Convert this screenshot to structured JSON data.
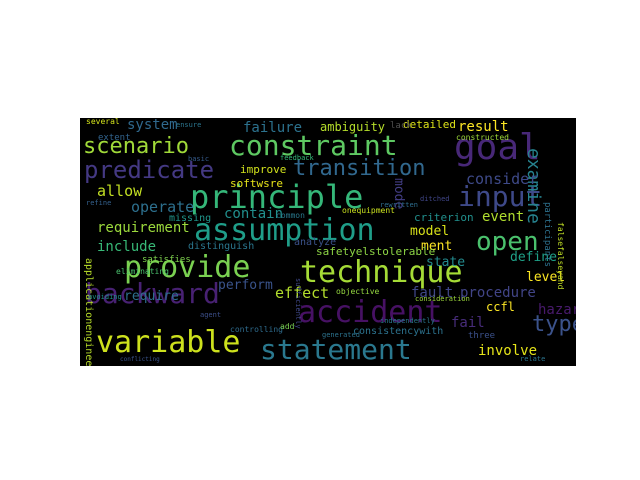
{
  "words": [
    {
      "text": "constraint",
      "color": "#5ec962"
    },
    {
      "text": "goal",
      "color": "#482878"
    },
    {
      "text": "scenario",
      "color": "#a0da39"
    },
    {
      "text": "predicate",
      "color": "#443983"
    },
    {
      "text": "transition",
      "color": "#31688e"
    },
    {
      "text": "principle",
      "color": "#35b779"
    },
    {
      "text": "input",
      "color": "#3e4989"
    },
    {
      "text": "assumption",
      "color": "#1f9e89"
    },
    {
      "text": "open",
      "color": "#4ac16d"
    },
    {
      "text": "provide",
      "color": "#7ad151"
    },
    {
      "text": "technique",
      "color": "#a5db36"
    },
    {
      "text": "backward",
      "color": "#482173"
    },
    {
      "text": "accident",
      "color": "#471164"
    },
    {
      "text": "variable",
      "color": "#cde11d"
    },
    {
      "text": "statement",
      "color": "#2a788e"
    },
    {
      "text": "type",
      "color": "#3b528b"
    },
    {
      "text": "examine",
      "color": "#26828e"
    },
    {
      "text": "failure",
      "color": "#2c728e"
    },
    {
      "text": "system",
      "color": "#30698e"
    },
    {
      "text": "ambiguity",
      "color": "#b5de2b"
    },
    {
      "text": "detailed",
      "color": "#dde318"
    },
    {
      "text": "result",
      "color": "#fde725"
    },
    {
      "text": "consider",
      "color": "#3e4a89"
    },
    {
      "text": "allow",
      "color": "#c2df23"
    },
    {
      "text": "operate",
      "color": "#2d708e"
    },
    {
      "text": "mode",
      "color": "#433e85"
    },
    {
      "text": "event",
      "color": "#b0dd2f"
    },
    {
      "text": "contain",
      "color": "#218f8d"
    },
    {
      "text": "requirement",
      "color": "#9bd93c"
    },
    {
      "text": "model",
      "color": "#d8e219"
    },
    {
      "text": "include",
      "color": "#38b977"
    },
    {
      "text": "ment",
      "color": "#fde725"
    },
    {
      "text": "define",
      "color": "#1fa188"
    },
    {
      "text": "level",
      "color": "#fbe723"
    },
    {
      "text": "effect",
      "color": "#b2dd2d"
    },
    {
      "text": "fault",
      "color": "#3f4788"
    },
    {
      "text": "procedure",
      "color": "#414487"
    },
    {
      "text": "require",
      "color": "#2e6f8e"
    },
    {
      "text": "perform",
      "color": "#3a548c"
    },
    {
      "text": "state",
      "color": "#238a8d"
    },
    {
      "text": "hazard",
      "color": "#481a6c"
    },
    {
      "text": "ccfl",
      "color": "#fde725"
    },
    {
      "text": "fail",
      "color": "#472c7a"
    },
    {
      "text": "involve",
      "color": "#e5e419"
    },
    {
      "text": "consistencywith",
      "color": "#2c728e"
    },
    {
      "text": "improve",
      "color": "#d0e11c"
    },
    {
      "text": "softwsre",
      "color": "#e7e419"
    },
    {
      "text": "safetyelstolerable",
      "color": "#8ed645"
    },
    {
      "text": "criterion",
      "color": "#21908d"
    },
    {
      "text": "analyze",
      "color": "#3b528b"
    },
    {
      "text": "distinguish",
      "color": "#2a768e"
    },
    {
      "text": "missing",
      "color": "#1f968b"
    },
    {
      "text": "satisfies",
      "color": "#7fd34e"
    },
    {
      "text": "eliminating",
      "color": "#4ac16d"
    },
    {
      "text": "applicationengineers",
      "color": "#b8de29"
    },
    {
      "text": "objective",
      "color": "#95d840"
    },
    {
      "text": "several",
      "color": "#d2e21b"
    },
    {
      "text": "extent",
      "color": "#32648e"
    },
    {
      "text": "falsefalseyand",
      "color": "#c0df25"
    },
    {
      "text": "participants",
      "color": "#2d718e"
    },
    {
      "text": "constructed",
      "color": "#9fda3a"
    },
    {
      "text": "three",
      "color": "#3b518b"
    },
    {
      "text": "generated",
      "color": "#2c738e"
    },
    {
      "text": "controlling",
      "color": "#2f6c8e"
    },
    {
      "text": "independently",
      "color": "#2a778e"
    },
    {
      "text": "consideration",
      "color": "#9dd93b"
    },
    {
      "text": "common",
      "color": "#29798e"
    },
    {
      "text": "onequipment",
      "color": "#cae11f"
    },
    {
      "text": "feedback",
      "color": "#35b779"
    },
    {
      "text": "ditched",
      "color": "#404688"
    },
    {
      "text": "rewritten",
      "color": "#2e6e8e"
    },
    {
      "text": "sufficiently",
      "color": "#3f4889"
    },
    {
      "text": "add",
      "color": "#7ad151"
    },
    {
      "text": "ensure",
      "color": "#2b758e"
    },
    {
      "text": "refine",
      "color": "#34618d"
    },
    {
      "text": "avoiding",
      "color": "#20928c"
    },
    {
      "text": "basic",
      "color": "#365c8d"
    },
    {
      "text": "conflicting",
      "color": "#3a538b"
    },
    {
      "text": "relate",
      "color": "#2b748e"
    },
    {
      "text": "agent",
      "color": "#3c4f8a"
    },
    {
      "text": "lack",
      "color": "#4e4e4e"
    }
  ]
}
